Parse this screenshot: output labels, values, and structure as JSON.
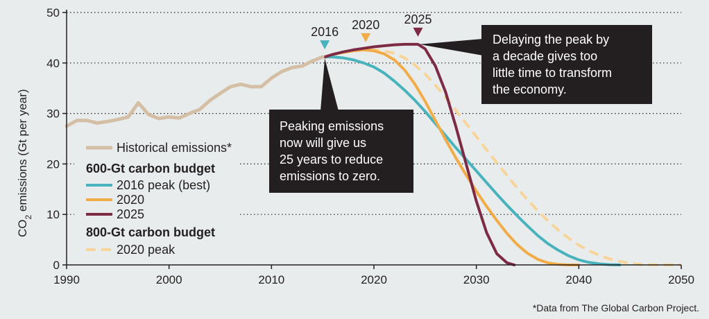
{
  "chart_data": {
    "type": "line",
    "ylabel_prefix": "CO",
    "ylabel_sub": "2",
    "ylabel_suffix": " emissions (Gt per year)",
    "xlim": [
      1990,
      2050
    ],
    "ylim": [
      0,
      50
    ],
    "x_ticks": [
      1990,
      2000,
      2010,
      2020,
      2030,
      2040,
      2050
    ],
    "y_ticks": [
      0,
      10,
      20,
      30,
      40,
      50
    ],
    "grid": "horizontal-dotted",
    "legend_position": "left",
    "legend": {
      "historical": "Historical emissions*",
      "group1_title": "600-Gt carbon budget",
      "peak2016": "2016 peak (best)",
      "peak2020": "2020",
      "peak2025": "2025",
      "group2_title": "800-Gt carbon budget",
      "peak2020_800": "2020 peak"
    },
    "peak_markers": [
      {
        "label": "2016",
        "x": 2015.2,
        "y": 41.2,
        "color": "#49b3bd"
      },
      {
        "label": "2020",
        "x": 2019.2,
        "y": 42.6,
        "color": "#f1ac48"
      },
      {
        "label": "2025",
        "x": 2024.3,
        "y": 43.7,
        "color": "#7d2a45"
      }
    ],
    "callouts": [
      {
        "lines": [
          "Peaking emissions",
          "now will give us",
          "25 years to reduce",
          "emissions to zero."
        ],
        "pointer_x": 2015.2,
        "pointer_y": 41.2
      },
      {
        "lines": [
          "Delaying the peak by",
          "a decade gives too",
          "little time to transform",
          "the economy."
        ],
        "pointer_x": 2024.3,
        "pointer_y": 43.7
      }
    ],
    "footnote": "*Data from The Global Carbon Project.",
    "series": [
      {
        "key": "historical",
        "color": "#d4bfa6",
        "dash": "none",
        "width": 5,
        "x": [
          1990,
          1991,
          1992,
          1993,
          1994,
          1995,
          1996,
          1997,
          1998,
          1999,
          2000,
          2001,
          2002,
          2003,
          2004,
          2005,
          2006,
          2007,
          2008,
          2009,
          2010,
          2011,
          2012,
          2013,
          2014,
          2015
        ],
        "y": [
          27.5,
          28.6,
          28.6,
          28.1,
          28.4,
          28.8,
          29.3,
          32.1,
          29.8,
          29.0,
          29.3,
          29.1,
          30.0,
          30.8,
          32.6,
          34.0,
          35.3,
          35.8,
          35.3,
          35.3,
          37.0,
          38.3,
          39.1,
          39.4,
          40.4,
          41.2
        ]
      },
      {
        "key": "peak2016",
        "color": "#49b3bd",
        "dash": "none",
        "width": 4,
        "x": [
          2015.2,
          2016,
          2017,
          2018,
          2019,
          2020,
          2021,
          2022,
          2023,
          2024,
          2025,
          2026,
          2027,
          2028,
          2029,
          2030,
          2031,
          2032,
          2033,
          2034,
          2035,
          2036,
          2037,
          2038,
          2039,
          2040,
          2041,
          2042,
          2043,
          2044
        ],
        "y": [
          41.2,
          41.2,
          41.0,
          40.6,
          40.0,
          39.2,
          38.0,
          36.4,
          34.6,
          32.6,
          30.4,
          28.0,
          25.6,
          23.2,
          20.9,
          18.6,
          16.3,
          14.0,
          11.8,
          9.7,
          7.7,
          5.8,
          4.2,
          2.9,
          1.8,
          1.0,
          0.5,
          0.2,
          0.05,
          0
        ]
      },
      {
        "key": "peak2020",
        "color": "#f1ac48",
        "dash": "none",
        "width": 4,
        "x": [
          2015.2,
          2016,
          2017,
          2018,
          2019,
          2020,
          2021,
          2022,
          2023,
          2024,
          2025,
          2026,
          2027,
          2028,
          2029,
          2030,
          2031,
          2032,
          2033,
          2034,
          2035,
          2036,
          2037,
          2038,
          2039,
          2040
        ],
        "y": [
          41.2,
          41.7,
          42.1,
          42.4,
          42.6,
          42.4,
          41.8,
          40.6,
          38.6,
          35.8,
          32.4,
          28.6,
          24.8,
          21.2,
          17.8,
          14.6,
          11.6,
          8.8,
          6.2,
          4.0,
          2.3,
          1.1,
          0.4,
          0.1,
          0,
          0
        ]
      },
      {
        "key": "peak2025",
        "color": "#7d2a45",
        "dash": "none",
        "width": 4,
        "x": [
          2015.2,
          2016,
          2017,
          2018,
          2019,
          2020,
          2021,
          2022,
          2023,
          2024,
          2024.3,
          2025,
          2026,
          2027,
          2028,
          2029,
          2030,
          2031,
          2032,
          2033,
          2033.7
        ],
        "y": [
          41.2,
          41.7,
          42.2,
          42.6,
          42.9,
          43.2,
          43.4,
          43.6,
          43.7,
          43.7,
          43.7,
          42.8,
          39.4,
          34.2,
          27.4,
          20.0,
          12.6,
          6.4,
          2.2,
          0.4,
          0
        ]
      },
      {
        "key": "peak2020_800",
        "color": "#f7d59a",
        "dash": "14 8",
        "width": 4,
        "x": [
          2015.2,
          2016,
          2017,
          2018,
          2019,
          2020,
          2021,
          2022,
          2023,
          2024,
          2025,
          2026,
          2027,
          2028,
          2029,
          2030,
          2031,
          2032,
          2033,
          2034,
          2035,
          2036,
          2037,
          2038,
          2039,
          2040,
          2041,
          2042,
          2043,
          2044,
          2045,
          2046,
          2047,
          2048,
          2049,
          2050
        ],
        "y": [
          41.2,
          41.7,
          42.1,
          42.4,
          42.6,
          42.6,
          42.4,
          41.9,
          41.0,
          39.6,
          37.8,
          35.6,
          33.2,
          30.6,
          28.0,
          25.4,
          22.8,
          20.2,
          17.7,
          15.2,
          12.9,
          10.7,
          8.7,
          6.9,
          5.3,
          3.9,
          2.8,
          1.9,
          1.2,
          0.7,
          0.3,
          0.1,
          0.03,
          0,
          0,
          0
        ]
      }
    ]
  }
}
